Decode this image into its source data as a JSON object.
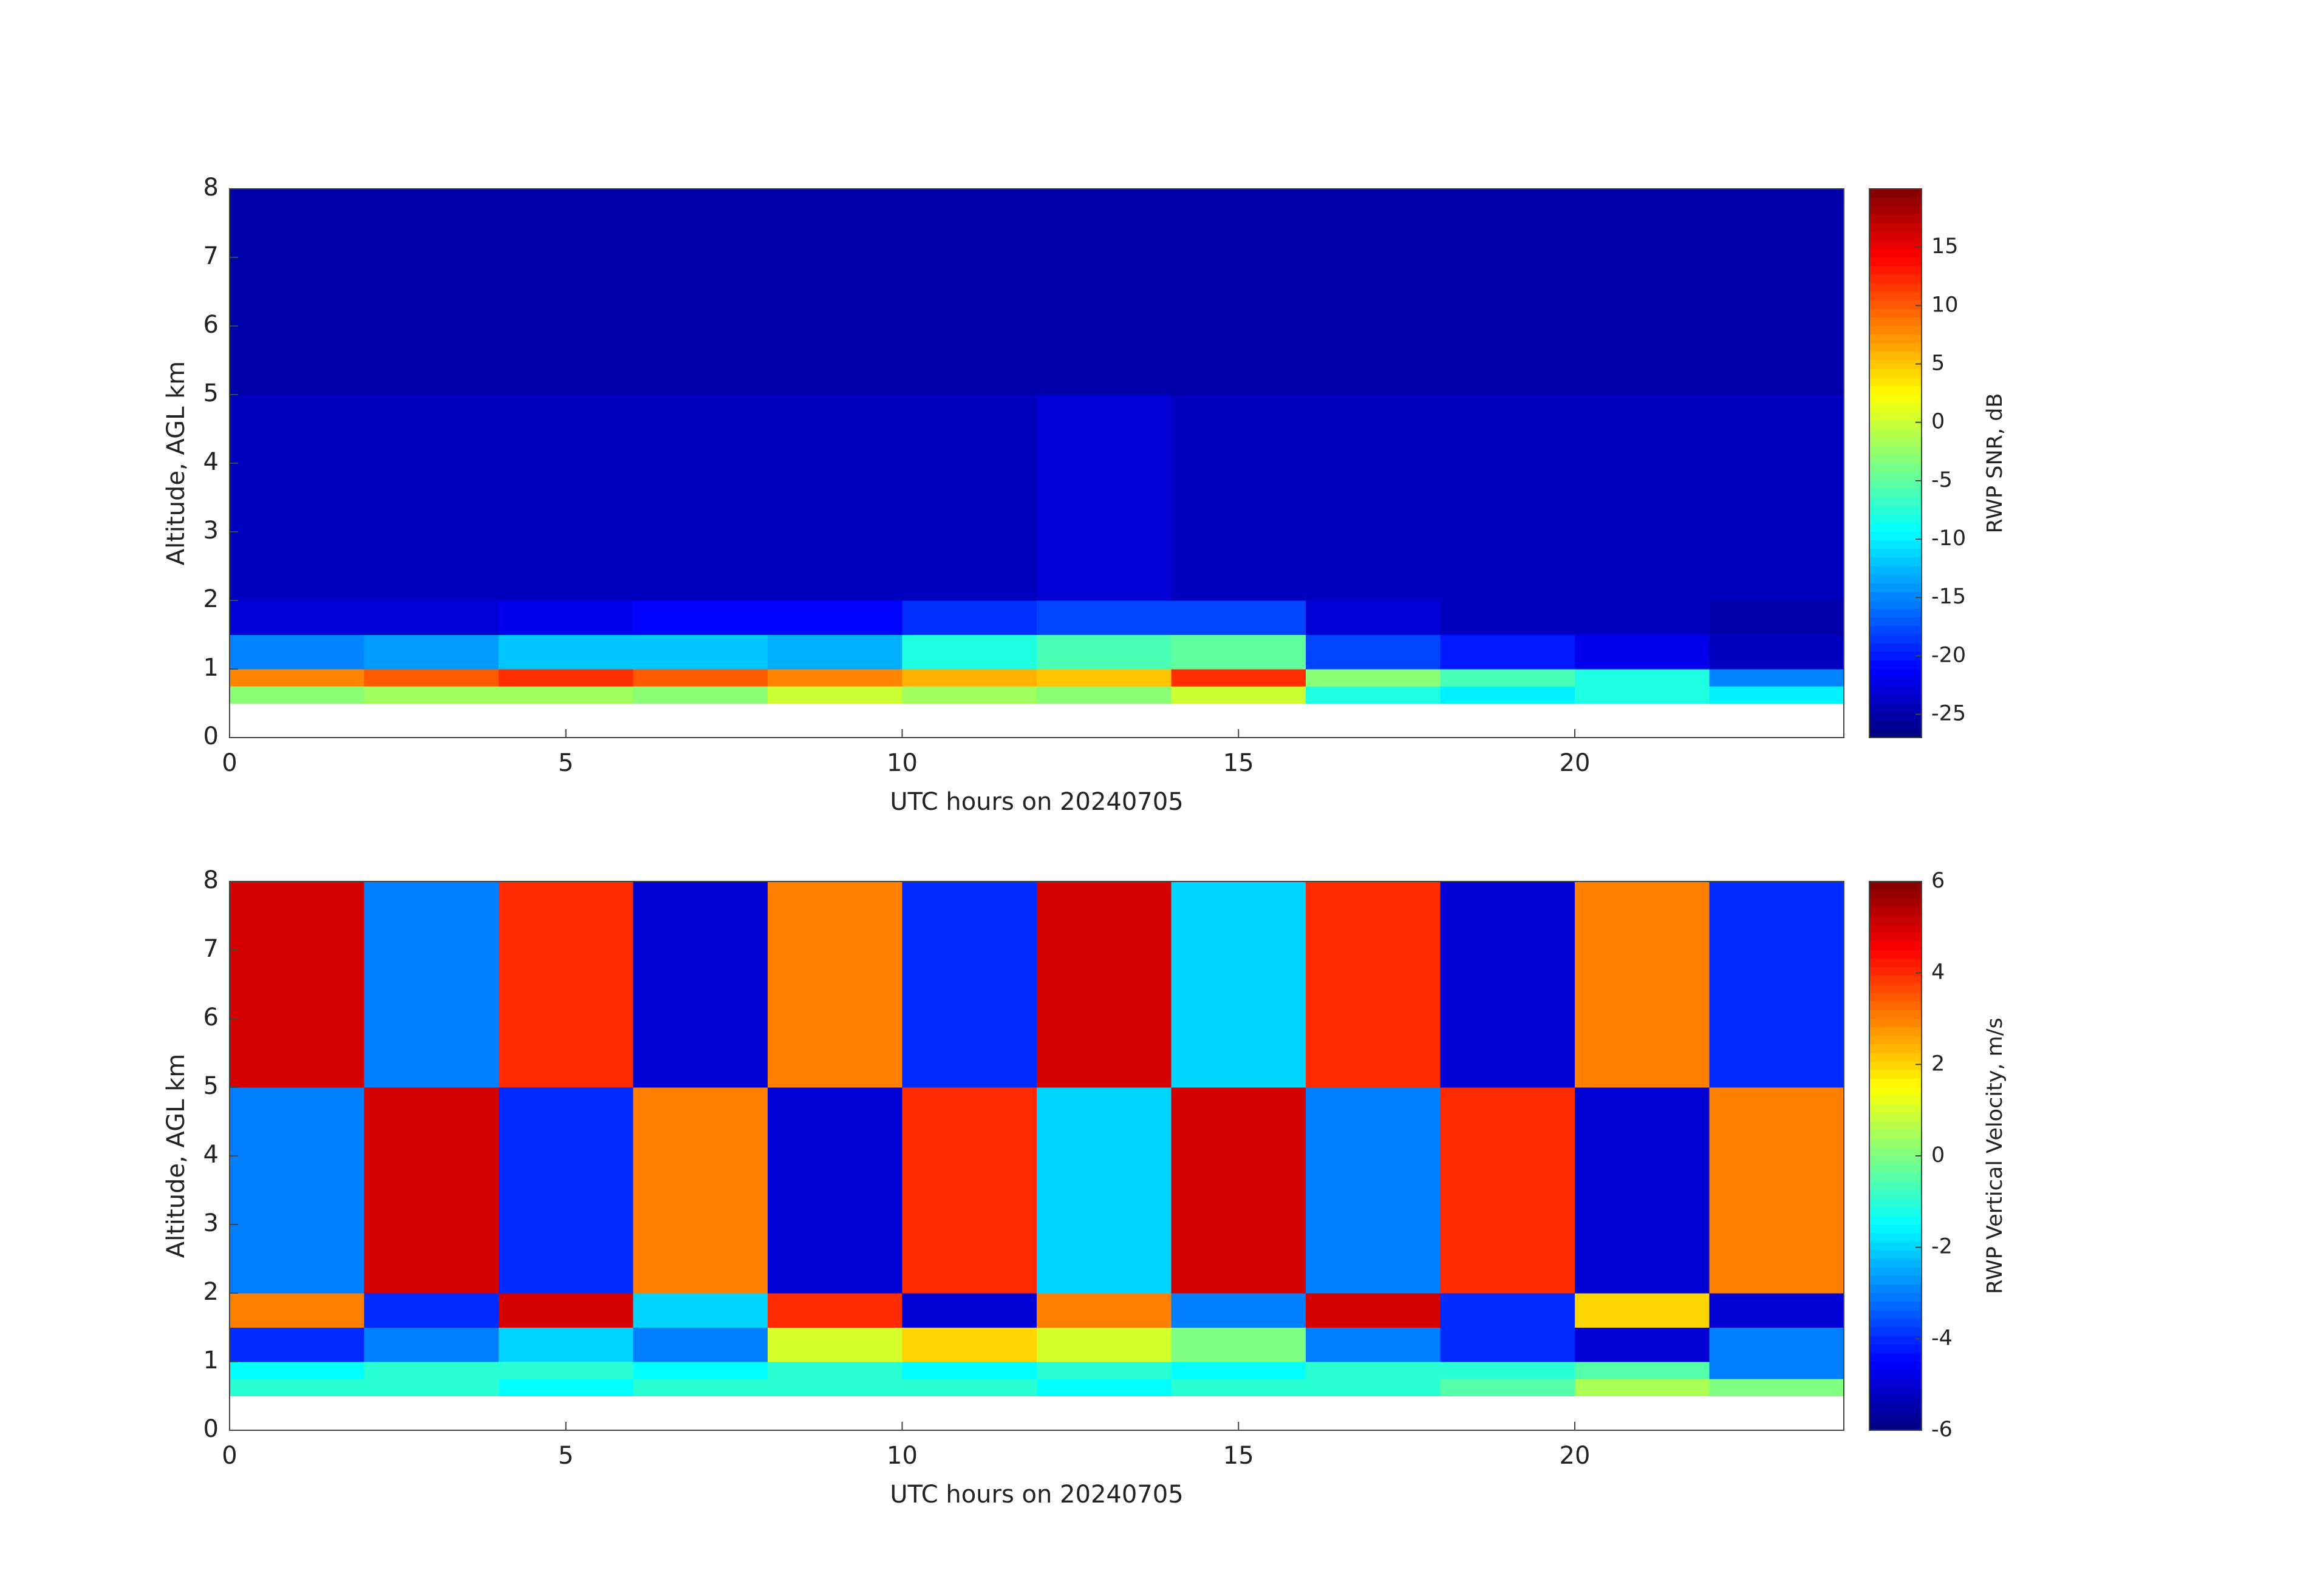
{
  "chart_data": [
    {
      "type": "heatmap",
      "colormap": "jet",
      "xlabel": "UTC hours on 20240705",
      "ylabel": "Altitude, AGL km",
      "colorbar_label": "RWP SNR, dB",
      "x_edges": [
        0,
        2,
        4,
        6,
        8,
        10,
        12,
        14,
        16,
        18,
        20,
        22,
        24
      ],
      "y_edges": [
        0.5,
        0.75,
        1,
        1.5,
        2,
        5,
        8
      ],
      "z": [
        [
          -3,
          -2,
          -2,
          -3,
          0,
          -2,
          -3,
          0,
          -8,
          -10,
          -8,
          -10
        ],
        [
          8,
          10,
          12,
          10,
          8,
          6,
          5,
          12,
          -3,
          -6,
          -8,
          -15
        ],
        [
          -15,
          -14,
          -12,
          -12,
          -13,
          -8,
          -6,
          -5,
          -18,
          -20,
          -22,
          -24
        ],
        [
          -23,
          -23,
          -22,
          -21,
          -21,
          -19,
          -18,
          -18,
          -23,
          -24,
          -24,
          -25
        ],
        [
          -24,
          -24,
          -24,
          -24,
          -24,
          -24,
          -23,
          -24,
          -24,
          -24,
          -24,
          -24
        ],
        [
          -25,
          -25,
          -25,
          -25,
          -25,
          -25,
          -25,
          -25,
          -25,
          -25,
          -25,
          -25
        ]
      ],
      "xlim": [
        0,
        24
      ],
      "xticks": [
        0,
        5,
        10,
        15,
        20
      ],
      "ylim": [
        0,
        8
      ],
      "yticks": [
        0,
        1,
        2,
        3,
        4,
        5,
        6,
        7,
        8
      ],
      "clim": [
        -27,
        20
      ],
      "cticks": [
        -25,
        -20,
        -15,
        -10,
        -5,
        0,
        5,
        10,
        15
      ]
    },
    {
      "type": "heatmap",
      "colormap": "jet",
      "xlabel": "UTC hours on 20240705",
      "ylabel": "Altitude, AGL km",
      "colorbar_label": "RWP Vertical Velocity, m/s",
      "x_edges": [
        0,
        2,
        4,
        6,
        8,
        10,
        12,
        14,
        16,
        18,
        20,
        22,
        24
      ],
      "y_edges": [
        0.5,
        0.75,
        1,
        1.5,
        2,
        5,
        8
      ],
      "z": [
        [
          -1,
          -1,
          -1.5,
          -1,
          -1,
          -1,
          -1.5,
          -1,
          -1,
          -0.5,
          0.5,
          0
        ],
        [
          -1.5,
          -1,
          -1,
          -1.5,
          -1,
          -1.5,
          -1,
          -1.5,
          -1,
          -1,
          -0.5,
          -3
        ],
        [
          -4,
          -3,
          -2,
          -3,
          1,
          2,
          1,
          0,
          -3,
          -4,
          -5,
          -3
        ],
        [
          3,
          -4,
          5,
          -2,
          4,
          -5,
          3,
          -3,
          5,
          -4,
          2,
          -5
        ],
        [
          -3,
          5,
          -4,
          3,
          -5,
          4,
          -2,
          5,
          -3,
          4,
          -5,
          3
        ],
        [
          5,
          -3,
          4,
          -5,
          3,
          -4,
          5,
          -2,
          4,
          -5,
          3,
          -4
        ]
      ],
      "xlim": [
        0,
        24
      ],
      "xticks": [
        0,
        5,
        10,
        15,
        20
      ],
      "ylim": [
        0,
        8
      ],
      "yticks": [
        0,
        1,
        2,
        3,
        4,
        5,
        6,
        7,
        8
      ],
      "clim": [
        -6,
        6
      ],
      "cticks": [
        -6,
        -4,
        -2,
        0,
        2,
        4,
        6
      ]
    }
  ]
}
